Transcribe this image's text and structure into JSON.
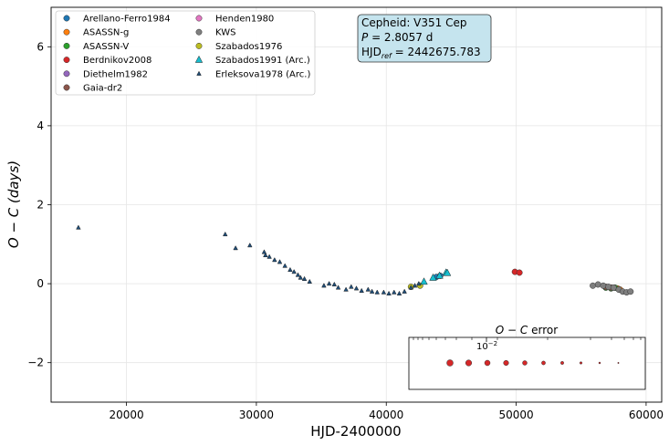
{
  "chart_data": {
    "type": "scatter",
    "xlabel": "HJD-2400000",
    "ylabel": "O − C (days)",
    "xlim": [
      14200,
      61200
    ],
    "ylim": [
      -3.0,
      7.0
    ],
    "xticks": [
      20000,
      30000,
      40000,
      50000,
      60000
    ],
    "xtick_labels": [
      "20000",
      "30000",
      "40000",
      "50000",
      "60000"
    ],
    "yticks": [
      -2,
      0,
      2,
      4,
      6
    ],
    "ytick_labels": [
      "−2",
      "0",
      "2",
      "4",
      "6"
    ],
    "grid": true,
    "legend_placement": "top-left",
    "annotation": {
      "line1": "Cepheid: V351 Cep",
      "period_symbol": "P",
      "period_value": " = 2.8057 d",
      "hjd_prefix": "HJD",
      "hjd_sub": "ref",
      "hjd_value": " = 2442675.783"
    },
    "series": [
      {
        "name": "Arellano-Ferro1984",
        "marker": "circle",
        "color": "#1f77b4",
        "x": [
          43850,
          44150
        ],
        "y": [
          0.17,
          0.2
        ]
      },
      {
        "name": "ASASSN-g",
        "marker": "circle",
        "color": "#ff7f0e",
        "x": [
          57800,
          58000
        ],
        "y": [
          -0.12,
          -0.15
        ]
      },
      {
        "name": "ASASSN-V",
        "marker": "circle",
        "color": "#2ca02c",
        "x": [
          56900,
          57300,
          57600
        ],
        "y": [
          -0.1,
          -0.12,
          -0.1
        ]
      },
      {
        "name": "Berdnikov2008",
        "marker": "circle",
        "color": "#d62728",
        "x": [
          49900,
          50250
        ],
        "y": [
          0.3,
          0.28
        ]
      },
      {
        "name": "Diethelm1982",
        "marker": "circle",
        "color": "#9467bd",
        "x": [],
        "y": []
      },
      {
        "name": "Gaia-dr2",
        "marker": "circle",
        "color": "#8c564b",
        "x": [
          56900,
          57300
        ],
        "y": [
          -0.08,
          -0.1
        ]
      },
      {
        "name": "Henden1980",
        "marker": "circle",
        "color": "#e377c2",
        "x": [],
        "y": []
      },
      {
        "name": "KWS",
        "marker": "circle",
        "color": "#7f7f7f",
        "x": [
          55900,
          56300,
          56700,
          57100,
          57500,
          57900,
          58200,
          58500,
          58800
        ],
        "y": [
          -0.05,
          -0.02,
          -0.05,
          -0.08,
          -0.1,
          -0.15,
          -0.2,
          -0.22,
          -0.2
        ]
      },
      {
        "name": "Szabados1976",
        "marker": "circle",
        "color": "#bcbd22",
        "x": [
          41900,
          42600
        ],
        "y": [
          -0.08,
          -0.05
        ]
      },
      {
        "name": "Szabados1991 (Arc.)",
        "marker": "triangle",
        "color": "#17becf",
        "x": [
          42900,
          43600,
          44100,
          44600,
          44700
        ],
        "y": [
          0.05,
          0.15,
          0.2,
          0.28,
          0.27
        ]
      },
      {
        "name": "Erleksova1978 (Arc.)",
        "marker": "triangle-small",
        "color": "#1f4e79",
        "x": [
          16300,
          27600,
          28400,
          29500,
          30600,
          30700,
          31000,
          31400,
          31800,
          32200,
          32600,
          32900,
          33200,
          33400,
          33700,
          34100,
          35200,
          35600,
          36000,
          36300,
          36900,
          37300,
          37700,
          38100,
          38600,
          38900,
          39300,
          39800,
          40200,
          40600,
          41000,
          41400,
          41900,
          42200,
          42500
        ],
        "y": [
          1.42,
          1.25,
          0.9,
          0.97,
          0.8,
          0.72,
          0.68,
          0.6,
          0.55,
          0.45,
          0.35,
          0.3,
          0.22,
          0.15,
          0.12,
          0.05,
          -0.05,
          0.0,
          -0.02,
          -0.1,
          -0.15,
          -0.08,
          -0.12,
          -0.18,
          -0.15,
          -0.2,
          -0.22,
          -0.22,
          -0.25,
          -0.22,
          -0.25,
          -0.2,
          -0.1,
          -0.05,
          0.0
        ]
      }
    ],
    "inset": {
      "title_symbol": "O − C",
      "title_suffix": " error",
      "tick_base": "10",
      "tick_exponent": "−2",
      "marker_color": "#d62728",
      "marker_sizes": [
        3.5,
        3.3,
        3.0,
        2.8,
        2.5,
        2.1,
        1.7,
        1.3,
        1.0,
        0.7
      ]
    }
  }
}
